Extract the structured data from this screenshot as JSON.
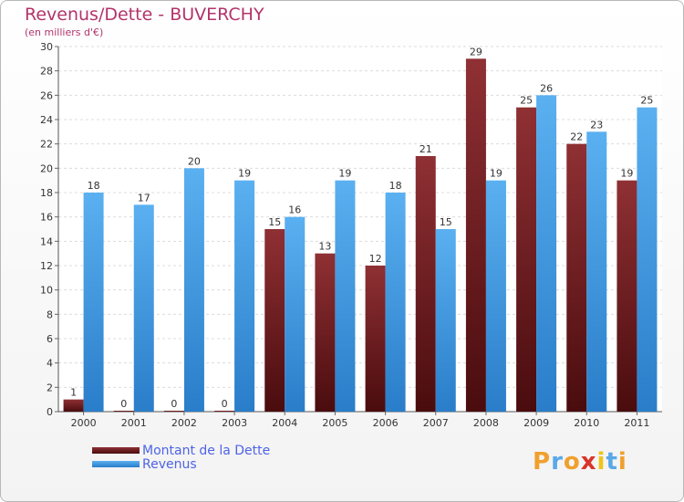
{
  "colors": {
    "dette": "#7a1f22",
    "revenus": "#3f9ae6",
    "title": "#b3336b",
    "legend_text": "#4e63e6"
  },
  "logo": {
    "text": "Proxiti",
    "letter_colors": [
      "#f0a02c",
      "#5aa8e8",
      "#f0a02c",
      "#d9342b",
      "#f0c419",
      "#5aa8e8",
      "#f0a02c"
    ]
  },
  "chart_data": {
    "type": "bar",
    "title": "Revenus/Dette - BUVERCHY",
    "subtitle": "(en milliers d'€)",
    "xlabel": "",
    "ylabel": "",
    "ylim": [
      0,
      30
    ],
    "yticks": [
      0,
      2,
      4,
      6,
      8,
      10,
      12,
      14,
      16,
      18,
      20,
      22,
      24,
      26,
      28,
      30
    ],
    "grid": true,
    "legend_position": "bottom-left",
    "categories": [
      "2000",
      "2001",
      "2002",
      "2003",
      "2004",
      "2005",
      "2006",
      "2007",
      "2008",
      "2009",
      "2010",
      "2011"
    ],
    "series": [
      {
        "name": "Montant de la Dette",
        "values": [
          1,
          0,
          0,
          0,
          15,
          13,
          12,
          21,
          29,
          25,
          22,
          19
        ]
      },
      {
        "name": "Revenus",
        "values": [
          18,
          17,
          20,
          19,
          16,
          19,
          18,
          15,
          19,
          26,
          23,
          25
        ]
      }
    ]
  }
}
